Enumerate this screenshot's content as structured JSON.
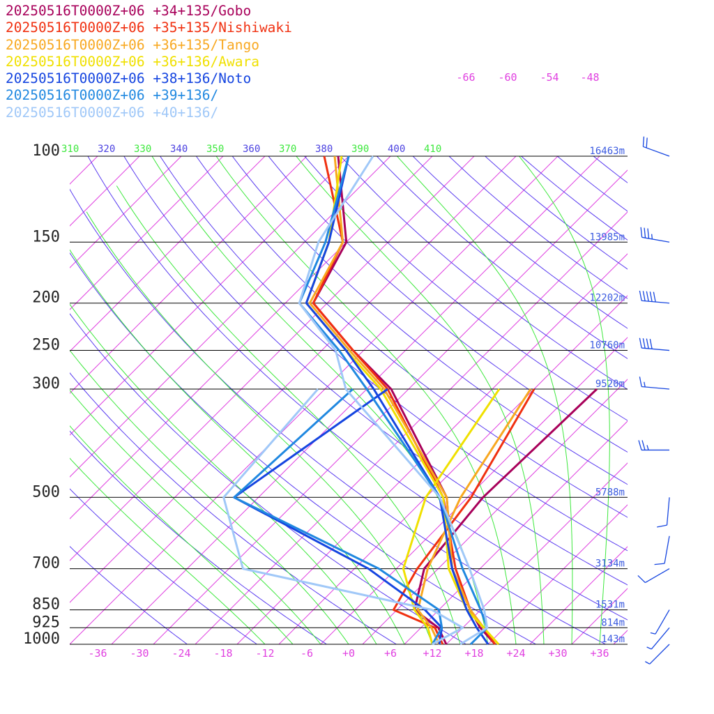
{
  "chart_data": {
    "type": "line",
    "title": "",
    "xlabel": "",
    "ylabel": "",
    "xlim": [
      -40,
      40
    ],
    "ylim": [
      1000,
      100
    ],
    "y_scale": "log",
    "grid": true,
    "pressure_levels": [
      {
        "p": 100,
        "label": "100",
        "height": "16463m"
      },
      {
        "p": 150,
        "label": "150",
        "height": "13985m"
      },
      {
        "p": 200,
        "label": "200",
        "height": "12202m"
      },
      {
        "p": 250,
        "label": "250",
        "height": "10760m"
      },
      {
        "p": 300,
        "label": "300",
        "height": "9520m"
      },
      {
        "p": 500,
        "label": "500",
        "height": "5788m"
      },
      {
        "p": 700,
        "label": "700",
        "height": "3134m"
      },
      {
        "p": 850,
        "label": "850",
        "height": "1531m"
      },
      {
        "p": 925,
        "label": "925",
        "height": "814m"
      },
      {
        "p": 1000,
        "label": "1000",
        "height": "143m"
      }
    ],
    "x_ticks": [
      "-36",
      "-30",
      "-24",
      "-18",
      "-12",
      "-6",
      "+0",
      "+6",
      "+12",
      "+18",
      "+24",
      "+30",
      "+36"
    ],
    "x_tick_values": [
      -36,
      -30,
      -24,
      -18,
      -12,
      -6,
      0,
      6,
      12,
      18,
      24,
      30,
      36
    ],
    "top_temp_labels": [
      "-66",
      "-60",
      "-54",
      "-48"
    ],
    "theta_labels": [
      "310",
      "320",
      "330",
      "340",
      "350",
      "360",
      "370",
      "380",
      "390",
      "400",
      "410"
    ],
    "series": [
      {
        "name": "20250516T0000Z+06 +34+135/Gobo",
        "color": "#a8005a",
        "temperature": [
          [
            1000,
            21.0
          ],
          [
            925,
            16.5
          ],
          [
            850,
            12.5
          ],
          [
            700,
            4.0
          ],
          [
            500,
            -7.0
          ],
          [
            300,
            -30.5
          ],
          [
            250,
            -41.5
          ],
          [
            200,
            -54.0
          ],
          [
            150,
            -58.0
          ],
          [
            100,
            -71.5
          ]
        ],
        "dewpoint": [
          [
            1000,
            14.0
          ],
          [
            925,
            10.5
          ],
          [
            850,
            4.5
          ],
          [
            700,
            0.0
          ],
          [
            500,
            -1.8
          ],
          [
            300,
            -1.0
          ]
        ]
      },
      {
        "name": "20250516T0000Z+06 +35+135/Nishiwaki",
        "color": "#f03010",
        "temperature": [
          [
            1000,
            21.0
          ],
          [
            925,
            17.0
          ],
          [
            850,
            12.5
          ],
          [
            700,
            4.5
          ],
          [
            500,
            -7.5
          ],
          [
            300,
            -31.0
          ],
          [
            250,
            -41.5
          ],
          [
            200,
            -54.0
          ],
          [
            150,
            -58.5
          ],
          [
            100,
            -73.5
          ]
        ],
        "dewpoint": [
          [
            1000,
            13.5
          ],
          [
            925,
            10.0
          ],
          [
            850,
            1.5
          ],
          [
            700,
            -1.0
          ],
          [
            500,
            -3.5
          ],
          [
            300,
            -10.0
          ]
        ]
      },
      {
        "name": "20250516T0000Z+06 +36+135/Tango",
        "color": "#f8a820",
        "temperature": [
          [
            1000,
            21.5
          ],
          [
            925,
            17.0
          ],
          [
            850,
            12.5
          ],
          [
            700,
            4.0
          ],
          [
            500,
            -7.0
          ],
          [
            300,
            -31.5
          ],
          [
            250,
            -42.0
          ],
          [
            200,
            -54.5
          ],
          [
            150,
            -58.5
          ],
          [
            100,
            -72.0
          ]
        ],
        "dewpoint": [
          [
            1000,
            13.0
          ],
          [
            925,
            9.5
          ],
          [
            850,
            5.0
          ],
          [
            700,
            0.5
          ],
          [
            500,
            -5.0
          ],
          [
            300,
            -10.5
          ]
        ]
      },
      {
        "name": "20250516T0000Z+06 +36+136/Awara",
        "color": "#f0e000",
        "temperature": [
          [
            1000,
            21.5
          ],
          [
            925,
            17.0
          ],
          [
            850,
            12.0
          ],
          [
            700,
            3.5
          ],
          [
            500,
            -7.5
          ],
          [
            300,
            -32.0
          ],
          [
            250,
            -42.5
          ],
          [
            200,
            -55.0
          ],
          [
            150,
            -60.5
          ],
          [
            100,
            -71.0
          ]
        ],
        "dewpoint": [
          [
            1000,
            12.0
          ],
          [
            925,
            9.0
          ],
          [
            850,
            4.5
          ],
          [
            700,
            -3.0
          ],
          [
            500,
            -10.0
          ],
          [
            300,
            -15.0
          ]
        ]
      },
      {
        "name": "20250516T0000Z+06 +38+136/Noto",
        "color": "#1545e0",
        "temperature": [
          [
            1000,
            20.0
          ],
          [
            925,
            16.0
          ],
          [
            850,
            12.0
          ],
          [
            700,
            4.0
          ],
          [
            500,
            -8.0
          ],
          [
            300,
            -33.0
          ],
          [
            250,
            -42.5
          ],
          [
            200,
            -55.0
          ],
          [
            150,
            -60.5
          ],
          [
            100,
            -70.0
          ]
        ],
        "dewpoint": [
          [
            1000,
            13.0
          ],
          [
            925,
            11.0
          ],
          [
            850,
            6.0
          ],
          [
            700,
            -8.0
          ],
          [
            500,
            -37.5
          ],
          [
            300,
            -31.0
          ]
        ]
      },
      {
        "name": "20250516T0000Z+06 +39+136/",
        "color": "#2088e0",
        "temperature": [
          [
            1000,
            17.5
          ],
          [
            925,
            17.5
          ],
          [
            850,
            14.0
          ],
          [
            700,
            5.5
          ],
          [
            500,
            -8.0
          ],
          [
            300,
            -34.0
          ],
          [
            250,
            -43.5
          ],
          [
            200,
            -56.0
          ],
          [
            150,
            -61.0
          ],
          [
            100,
            -70.0
          ]
        ],
        "dewpoint": [
          [
            1000,
            12.0
          ],
          [
            925,
            11.0
          ],
          [
            850,
            8.0
          ],
          [
            700,
            -6.5
          ],
          [
            500,
            -37.5
          ],
          [
            300,
            -36.0
          ]
        ]
      },
      {
        "name": "20250516T0000Z+06 +40+136/",
        "color": "#a0c8f8",
        "temperature": [
          [
            1000,
            16.0
          ],
          [
            925,
            17.5
          ],
          [
            850,
            14.5
          ],
          [
            700,
            6.5
          ],
          [
            500,
            -8.0
          ],
          [
            300,
            -37.0
          ],
          [
            250,
            -44.0
          ],
          [
            200,
            -56.0
          ],
          [
            150,
            -62.0
          ],
          [
            100,
            -66.5
          ]
        ],
        "dewpoint": [
          [
            1000,
            12.0
          ],
          [
            925,
            14.0
          ],
          [
            850,
            7.0
          ],
          [
            700,
            -26.0
          ],
          [
            500,
            -39.0
          ],
          [
            300,
            -41.0
          ]
        ]
      }
    ],
    "wind_barbs": [
      {
        "p": 100,
        "speed_kt": 20,
        "dir": 290
      },
      {
        "p": 150,
        "speed_kt": 35,
        "dir": 280
      },
      {
        "p": 200,
        "speed_kt": 50,
        "dir": 275
      },
      {
        "p": 250,
        "speed_kt": 40,
        "dir": 275
      },
      {
        "p": 300,
        "speed_kt": 15,
        "dir": 275
      },
      {
        "p": 400,
        "speed_kt": 25,
        "dir": 270
      },
      {
        "p": 500,
        "speed_kt": 10,
        "dir": 185
      },
      {
        "p": 600,
        "speed_kt": 10,
        "dir": 190
      },
      {
        "p": 700,
        "speed_kt": 10,
        "dir": 240
      },
      {
        "p": 850,
        "speed_kt": 5,
        "dir": 210
      },
      {
        "p": 925,
        "speed_kt": 5,
        "dir": 220
      },
      {
        "p": 1000,
        "speed_kt": 5,
        "dir": 225
      }
    ],
    "colors": {
      "isotherm": "#e040e0",
      "dry_adiabat": "#5a3cf0",
      "moist_adiabat": "#3ce83c",
      "isobar": "#000000",
      "height_label": "#3a5ae0",
      "wind_barb": "#1545e0",
      "x_tick": "#e040e0",
      "theta_text_blue": "#4a40e0",
      "theta_text_green": "#3ce83c"
    }
  }
}
